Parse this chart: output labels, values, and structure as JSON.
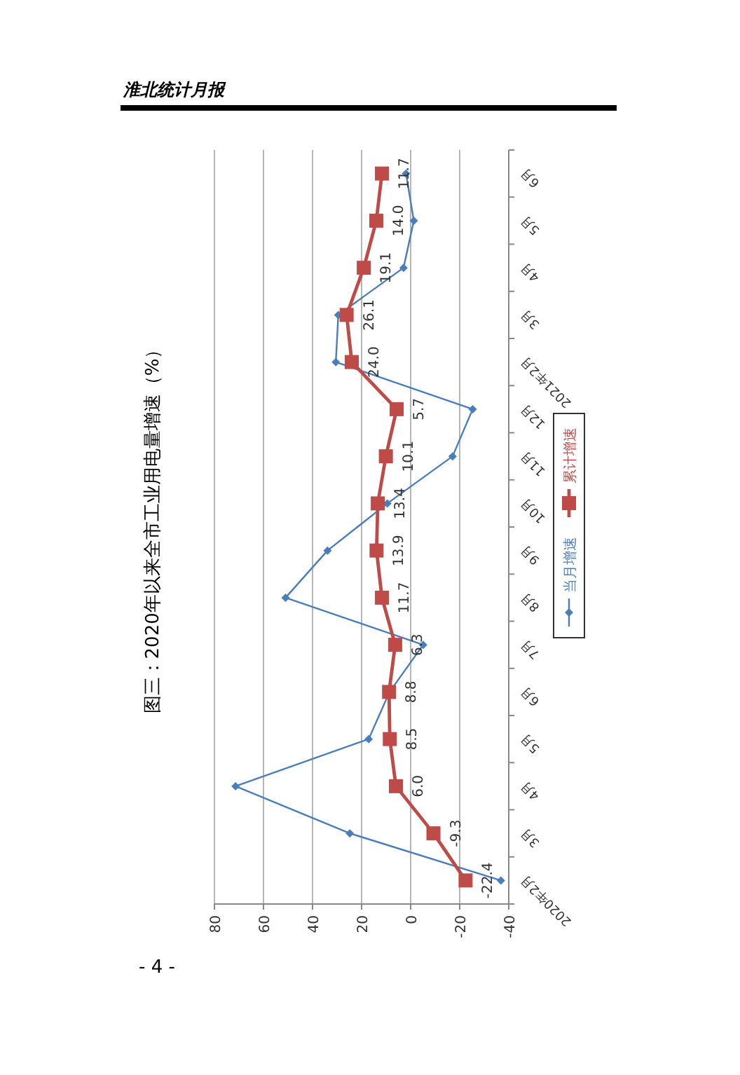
{
  "chart_data": {
    "type": "line",
    "orientation": "horizontal",
    "title": "图三：2020年以来全市工业用电量增速（%）",
    "annotations": [
      "淮北统计月报",
      "- 4 -"
    ],
    "categories": [
      "6月",
      "5月",
      "4月",
      "3月",
      "2021年2月",
      "12月",
      "11月",
      "10月",
      "9月",
      "8月",
      "7月",
      "6月",
      "5月",
      "4月",
      "3月",
      "2020年2月"
    ],
    "series": [
      {
        "name": "当月增速",
        "color": "#4a7ebb",
        "marker": "diamond",
        "values": [
          1.9,
          -1.3,
          2.9,
          29.5,
          30.5,
          -25.3,
          -17.1,
          9.5,
          33.9,
          51.0,
          -5.1,
          8.6,
          17.1,
          71.4,
          24.8,
          -36.8
        ]
      },
      {
        "name": "累计增速",
        "color": "#be4b48",
        "marker": "square",
        "values": [
          11.7,
          14.0,
          19.1,
          26.1,
          24.0,
          5.7,
          10.1,
          13.4,
          13.9,
          11.7,
          6.3,
          8.8,
          8.5,
          6.0,
          -9.3,
          -22.4
        ],
        "value_labels": [
          "11.7",
          "14.0",
          "19.1",
          "26.1",
          "24.0",
          "5.7",
          "10.1",
          "13.4",
          "13.9",
          "11.7",
          "6.3",
          "8.8",
          "8.5",
          "6.0",
          "-9.3",
          "-22.4"
        ]
      }
    ],
    "xlim": [
      80,
      -40
    ],
    "xticks": [
      80,
      60,
      40,
      20,
      0,
      -20,
      -40
    ],
    "grid": "x",
    "legend": "right"
  }
}
